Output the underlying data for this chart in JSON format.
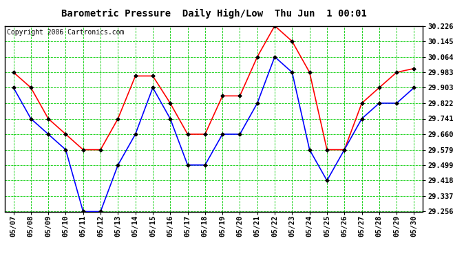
{
  "title": "Barometric Pressure  Daily High/Low  Thu Jun  1 00:01",
  "copyright": "Copyright 2006 Cartronics.com",
  "x_labels": [
    "05/07",
    "05/08",
    "05/09",
    "05/10",
    "05/11",
    "05/12",
    "05/13",
    "05/14",
    "05/15",
    "05/16",
    "05/17",
    "05/18",
    "05/19",
    "05/20",
    "05/21",
    "05/22",
    "05/23",
    "05/24",
    "05/25",
    "05/26",
    "05/27",
    "05/28",
    "05/29",
    "05/30"
  ],
  "high_values": [
    29.983,
    29.903,
    29.741,
    29.66,
    29.579,
    29.579,
    29.741,
    29.964,
    29.964,
    29.822,
    29.66,
    29.66,
    29.86,
    29.86,
    30.064,
    30.226,
    30.145,
    29.983,
    29.579,
    29.579,
    29.822,
    29.903,
    29.983,
    30.003
  ],
  "low_values": [
    29.903,
    29.741,
    29.66,
    29.579,
    29.256,
    29.256,
    29.499,
    29.66,
    29.903,
    29.741,
    29.499,
    29.499,
    29.66,
    29.66,
    29.822,
    30.064,
    29.983,
    29.579,
    29.418,
    29.579,
    29.741,
    29.822,
    29.822,
    29.903
  ],
  "y_ticks": [
    29.256,
    29.337,
    29.418,
    29.499,
    29.579,
    29.66,
    29.741,
    29.822,
    29.903,
    29.983,
    30.064,
    30.145,
    30.226
  ],
  "y_min": 29.256,
  "y_max": 30.226,
  "high_color": "#ff0000",
  "low_color": "#0000ff",
  "grid_color": "#00cc00",
  "bg_color": "#ffffff",
  "title_fontsize": 10,
  "copyright_fontsize": 7,
  "tick_fontsize": 7.5,
  "marker": "D",
  "marker_size": 3,
  "linewidth": 1.2
}
